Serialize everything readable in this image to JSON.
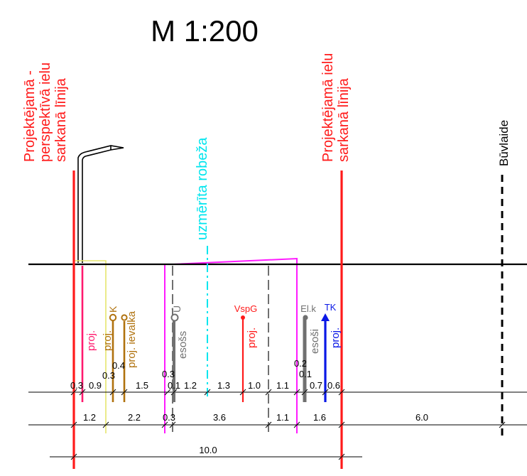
{
  "title": "M 1:200",
  "boundary_labels": {
    "left_red_line": [
      "Projektējamā -",
      "perspektīvā ielu",
      "sarkanā līnija"
    ],
    "right_red_line": [
      "Projektējamā ielu",
      "sarkanā līnija"
    ],
    "survey_boundary": "uzmērīta robeža",
    "building_line": "Būvlaide"
  },
  "utility_labels": {
    "proj_magenta": "proj.",
    "k_symbol": "K",
    "proj_k": "proj.",
    "proj_ievalka": "proj. ievalka",
    "u_symbol": "Û",
    "esoss": "esošs",
    "vspg_symbol": "VspG",
    "proj_vspg": "proj.",
    "elk_symbol": "El.k",
    "esosi": "esoši",
    "tk_symbol": "TK",
    "proj_tk": "proj."
  },
  "offset_labels": {
    "a": "0.3",
    "b": "0.4",
    "c": "0.3",
    "d": "0.2",
    "e": "0.1"
  },
  "dimension_rows": {
    "row1": [
      "0.3",
      "0.9",
      "1.5",
      "0.1",
      "1.2",
      "1.3",
      "1.0",
      "1.1",
      "0.7",
      "0.6"
    ],
    "row2": [
      "1.2",
      "2.2",
      "0.3",
      "3.6",
      "1.1",
      "1.6",
      "6.0"
    ],
    "row3": [
      "10.0"
    ]
  },
  "colors": {
    "red_line": "#ff1a1a",
    "magenta": "#ff1aff",
    "pink": "#ff1a6e",
    "brown": "#b0720e",
    "gray": "#707070",
    "cyan": "#00e5ee",
    "blue": "#0a18e6",
    "yellow": "#e6e66e",
    "black": "#000000"
  }
}
